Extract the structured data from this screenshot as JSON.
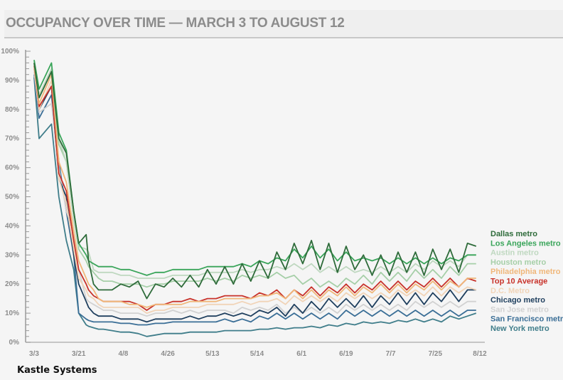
{
  "title": "OCCUPANCY OVER TIME — MARCH 3 TO AUGUST 12",
  "source": "Kastle Systems",
  "chart_data": {
    "type": "line",
    "title": "OCCUPANCY OVER TIME — MARCH 3 TO AUGUST 12",
    "xlabel": "",
    "ylabel": "",
    "ylim": [
      0,
      100
    ],
    "xlim": [
      0,
      180
    ],
    "yticks": [
      "0%",
      "10%",
      "20%",
      "30%",
      "40%",
      "50%",
      "60%",
      "70%",
      "80%",
      "90%",
      "100%"
    ],
    "xticks": [
      {
        "x": 0,
        "label": "3/3"
      },
      {
        "x": 18,
        "label": "3/21"
      },
      {
        "x": 36,
        "label": "4/8"
      },
      {
        "x": 54,
        "label": "4/26"
      },
      {
        "x": 72,
        "label": "5/13"
      },
      {
        "x": 90,
        "label": "5/14"
      },
      {
        "x": 108,
        "label": "6/1"
      },
      {
        "x": 126,
        "label": "6/19"
      },
      {
        "x": 144,
        "label": "7/7"
      },
      {
        "x": 162,
        "label": "7/25"
      },
      {
        "x": 180,
        "label": "8/12"
      }
    ],
    "legend_position": "right",
    "grid": false,
    "x": [
      0,
      2,
      7,
      10,
      13,
      16,
      18,
      21,
      22,
      24,
      26,
      28,
      31.5,
      35,
      38.5,
      42,
      45.5,
      49,
      52.5,
      56,
      59.5,
      63,
      66.5,
      70,
      73.5,
      77,
      80.5,
      84,
      87.5,
      91,
      94.5,
      98,
      101.5,
      105,
      108.5,
      112,
      115.5,
      119,
      122.5,
      126,
      129.5,
      133,
      136.5,
      140,
      143.5,
      147,
      150.5,
      154,
      157.5,
      161,
      164.5,
      168,
      171.5,
      175,
      178.5
    ],
    "series": [
      {
        "name": "Dallas metro",
        "color": "#2e6b3a",
        "values": [
          96,
          84,
          93,
          70,
          65,
          45,
          34,
          37,
          28,
          20,
          18,
          18,
          18,
          20,
          19,
          21,
          15,
          20,
          19,
          22,
          19,
          23,
          19,
          25,
          20,
          26,
          20,
          27,
          21,
          28,
          22,
          31,
          25,
          34,
          27,
          35,
          25,
          34,
          24,
          33,
          25,
          30,
          23,
          30,
          23,
          31,
          24,
          31,
          23,
          32,
          25,
          32,
          24,
          34,
          33
        ]
      },
      {
        "name": "Los Angeles metro",
        "color": "#3aa55a",
        "values": [
          97,
          87,
          96,
          72,
          66,
          45,
          34,
          30,
          28,
          27,
          26,
          26,
          26,
          25,
          25,
          24,
          23,
          24,
          24,
          25,
          25,
          25,
          25,
          26,
          26,
          26,
          26,
          27,
          26,
          28,
          27,
          29,
          28,
          32,
          29,
          33,
          29,
          32,
          28,
          31,
          28,
          29,
          28,
          29,
          27,
          29,
          27,
          29,
          27,
          29,
          27,
          29,
          28,
          30,
          30
        ]
      },
      {
        "name": "Austin metro",
        "color": "#bfd8c0",
        "values": [
          97,
          85,
          94,
          70,
          62,
          42,
          33,
          32,
          31,
          25,
          24,
          24,
          24,
          23,
          23,
          22,
          22,
          22,
          22,
          23,
          23,
          23,
          23,
          24,
          24,
          24,
          24,
          25,
          24,
          25,
          25,
          26,
          25,
          27,
          25,
          27,
          24,
          26,
          24,
          26,
          24,
          25,
          24,
          26,
          24,
          26,
          24,
          27,
          25,
          28,
          26,
          28,
          26,
          30,
          30
        ]
      },
      {
        "name": "Houston metro",
        "color": "#a6cfa8",
        "values": [
          96,
          84,
          93,
          68,
          62,
          42,
          32,
          28,
          26,
          24,
          22,
          21,
          21,
          20,
          20,
          20,
          19,
          20,
          20,
          21,
          21,
          21,
          21,
          22,
          21,
          22,
          21,
          23,
          22,
          23,
          22,
          24,
          22,
          23,
          20,
          22,
          19,
          21,
          19,
          22,
          20,
          23,
          20,
          24,
          21,
          24,
          21,
          25,
          22,
          25,
          22,
          26,
          23,
          27,
          27
        ]
      },
      {
        "name": "Philadelphia metro",
        "color": "#f0b77a",
        "values": [
          95,
          82,
          92,
          62,
          55,
          38,
          28,
          22,
          20,
          18,
          15,
          14,
          14,
          14,
          13,
          13,
          12,
          13,
          13,
          13,
          13,
          14,
          14,
          14,
          14,
          15,
          15,
          15,
          15,
          16,
          16,
          17,
          15,
          18,
          15,
          18,
          15,
          18,
          16,
          19,
          16,
          19,
          17,
          20,
          17,
          20,
          17,
          20,
          18,
          21,
          18,
          21,
          19,
          22,
          22
        ]
      },
      {
        "name": "Top 10 Average",
        "color": "#c8322a",
        "values": [
          95,
          81,
          88,
          58,
          52,
          35,
          25,
          20,
          18,
          16,
          15,
          14,
          14,
          14,
          14,
          13,
          11,
          13,
          13,
          14,
          14,
          15,
          14,
          15,
          15,
          16,
          16,
          16,
          15,
          17,
          16,
          18,
          15,
          18,
          16,
          19,
          16,
          19,
          17,
          20,
          17,
          20,
          18,
          21,
          18,
          21,
          18,
          21,
          19,
          22,
          19,
          22,
          19,
          22,
          21
        ]
      },
      {
        "name": "D.C. Metro",
        "color": "#f1d4b8",
        "values": [
          94,
          80,
          90,
          56,
          48,
          32,
          22,
          18,
          16,
          15,
          13,
          12,
          12,
          12,
          12,
          12,
          10,
          11,
          11,
          12,
          12,
          12,
          12,
          13,
          13,
          13,
          13,
          14,
          13,
          14,
          14,
          15,
          13,
          16,
          14,
          16,
          14,
          16,
          14,
          17,
          15,
          17,
          15,
          17,
          15,
          18,
          16,
          18,
          16,
          19,
          16,
          19,
          17,
          19,
          18
        ]
      },
      {
        "name": "Chicago metro",
        "color": "#1f3f5e",
        "values": [
          95,
          80,
          88,
          56,
          50,
          30,
          20,
          14,
          12,
          10,
          9,
          9,
          9,
          8,
          8,
          8,
          7,
          8,
          8,
          8,
          8,
          9,
          8,
          9,
          9,
          10,
          9,
          10,
          9,
          11,
          10,
          12,
          9,
          13,
          10,
          14,
          11,
          15,
          12,
          15,
          12,
          16,
          12,
          16,
          13,
          17,
          13,
          17,
          13,
          17,
          14,
          18,
          14,
          18,
          18
        ]
      },
      {
        "name": "San Jose metro",
        "color": "#d2d2d2",
        "values": [
          93,
          79,
          82,
          60,
          45,
          38,
          25,
          15,
          14,
          13,
          12,
          11,
          11,
          10,
          10,
          10,
          9,
          10,
          10,
          11,
          10,
          11,
          10,
          11,
          11,
          11,
          10,
          12,
          11,
          12,
          11,
          13,
          10,
          12,
          10,
          12,
          10,
          12,
          10,
          13,
          11,
          13,
          11,
          13,
          11,
          13,
          11,
          14,
          12,
          14,
          12,
          14,
          12,
          14,
          14
        ]
      },
      {
        "name": "San Francisco metro",
        "color": "#3a6e96",
        "values": [
          92,
          77,
          85,
          62,
          45,
          30,
          10,
          8,
          7.5,
          7,
          7,
          7,
          7,
          6.5,
          6.5,
          6,
          6,
          6.5,
          6.5,
          7,
          7,
          7,
          7,
          7,
          7,
          8,
          7,
          8,
          7,
          9,
          8,
          10,
          8,
          10,
          8,
          10,
          8,
          10,
          8,
          11,
          9,
          11,
          9,
          11,
          9,
          11,
          9,
          11,
          9,
          11,
          9,
          11,
          9,
          11,
          11
        ]
      },
      {
        "name": "New York metro",
        "color": "#3f7d8a",
        "values": [
          91,
          70,
          75,
          50,
          35,
          25,
          10,
          6,
          5.5,
          5,
          4.5,
          4.5,
          4,
          3.5,
          3.5,
          3,
          2,
          2.5,
          3,
          3,
          3,
          3.5,
          3.5,
          3.5,
          3.5,
          4,
          4,
          4,
          4,
          4.5,
          4.5,
          5,
          4.5,
          5,
          5,
          5.5,
          5,
          6,
          5.5,
          6.5,
          6,
          7,
          6.5,
          7,
          6.5,
          7.5,
          7,
          8,
          7,
          8,
          7,
          9,
          8,
          9,
          10
        ]
      }
    ]
  }
}
